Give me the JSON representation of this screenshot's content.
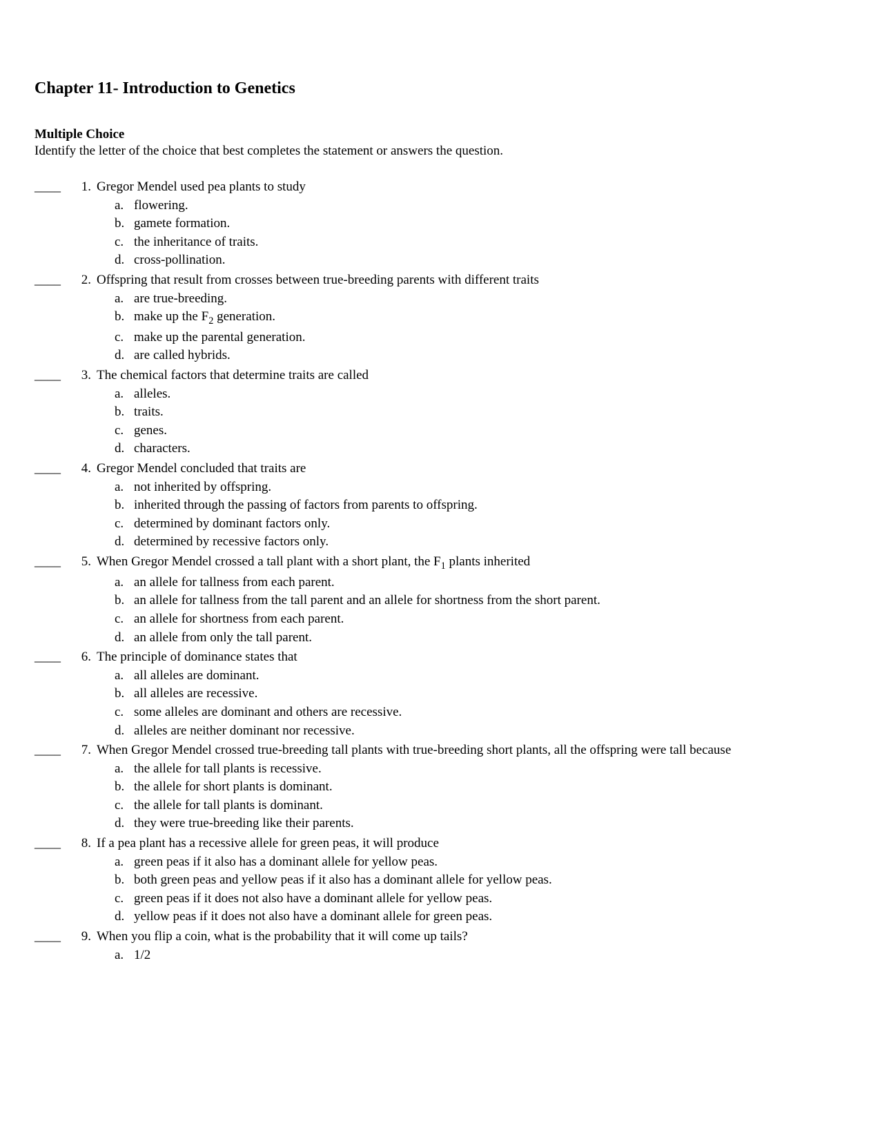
{
  "page": {
    "title": "Chapter 11- Introduction to Genetics",
    "section_header": "Multiple Choice",
    "instructions": "Identify the letter of the choice that best completes the statement or answers the question.",
    "answer_blank": "____",
    "font_family": "Times New Roman",
    "text_color": "#000000",
    "background_color": "#ffffff",
    "title_fontsize": 24,
    "body_fontsize": 19
  },
  "questions": [
    {
      "number": "1.",
      "stem": "Gregor Mendel used pea plants to study",
      "choices": [
        {
          "letter": "a.",
          "text": "flowering."
        },
        {
          "letter": "b.",
          "text": "gamete formation."
        },
        {
          "letter": "c.",
          "text": "the inheritance of traits."
        },
        {
          "letter": "d.",
          "text": "cross-pollination."
        }
      ]
    },
    {
      "number": "2.",
      "stem": "Offspring that result from crosses between true-breeding parents with different traits",
      "choices": [
        {
          "letter": "a.",
          "text": "are true-breeding."
        },
        {
          "letter": "b.",
          "text_html": "make up the F<sub>2</sub> generation."
        },
        {
          "letter": "c.",
          "text": "make up the parental generation."
        },
        {
          "letter": "d.",
          "text": "are called hybrids."
        }
      ]
    },
    {
      "number": "3.",
      "stem": "The chemical factors that determine traits are called",
      "choices": [
        {
          "letter": "a.",
          "text": "alleles."
        },
        {
          "letter": "b.",
          "text": "traits."
        },
        {
          "letter": "c.",
          "text": "genes."
        },
        {
          "letter": "d.",
          "text": "characters."
        }
      ]
    },
    {
      "number": "4.",
      "stem": "Gregor Mendel concluded that traits are",
      "choices": [
        {
          "letter": "a.",
          "text": "not inherited by offspring."
        },
        {
          "letter": "b.",
          "text": "inherited through the passing of factors from parents to offspring."
        },
        {
          "letter": "c.",
          "text": "determined by dominant factors only."
        },
        {
          "letter": "d.",
          "text": "determined by recessive factors only."
        }
      ]
    },
    {
      "number": "5.",
      "stem_html": "When Gregor Mendel crossed a tall plant with a short plant, the F<sub>1</sub> plants inherited",
      "choices": [
        {
          "letter": "a.",
          "text": "an allele for tallness from each parent."
        },
        {
          "letter": "b.",
          "text": "an allele for tallness from the tall parent and an allele for shortness from the short parent."
        },
        {
          "letter": "c.",
          "text": "an allele for shortness from each parent."
        },
        {
          "letter": "d.",
          "text": "an allele from only the tall parent."
        }
      ]
    },
    {
      "number": "6.",
      "stem": "The principle of dominance states that",
      "choices": [
        {
          "letter": "a.",
          "text": "all alleles are dominant."
        },
        {
          "letter": "b.",
          "text": "all alleles are recessive."
        },
        {
          "letter": "c.",
          "text": "some alleles are dominant and others are recessive."
        },
        {
          "letter": "d.",
          "text": "alleles are neither dominant nor recessive."
        }
      ]
    },
    {
      "number": "7.",
      "stem": "When Gregor Mendel crossed true-breeding tall plants with true-breeding short plants, all the offspring were tall because",
      "choices": [
        {
          "letter": "a.",
          "text": "the allele for tall plants is recessive."
        },
        {
          "letter": "b.",
          "text": "the allele for short plants is dominant."
        },
        {
          "letter": "c.",
          "text": "the allele for tall plants is dominant."
        },
        {
          "letter": "d.",
          "text": "they were true-breeding like their parents."
        }
      ]
    },
    {
      "number": "8.",
      "stem": "If a pea plant has a recessive allele for green peas, it will produce",
      "choices": [
        {
          "letter": "a.",
          "text": "green peas if it also has a dominant allele for yellow peas."
        },
        {
          "letter": "b.",
          "text": "both green peas and yellow peas if it also has a dominant allele for yellow peas."
        },
        {
          "letter": "c.",
          "text": "green peas if it does not also have a dominant allele for yellow peas."
        },
        {
          "letter": "d.",
          "text": "yellow peas if it does not also have a dominant allele for green peas."
        }
      ]
    },
    {
      "number": "9.",
      "stem": "When you flip a coin, what is the probability that it will come up tails?",
      "choices": [
        {
          "letter": "a.",
          "text": "1/2"
        }
      ]
    }
  ]
}
